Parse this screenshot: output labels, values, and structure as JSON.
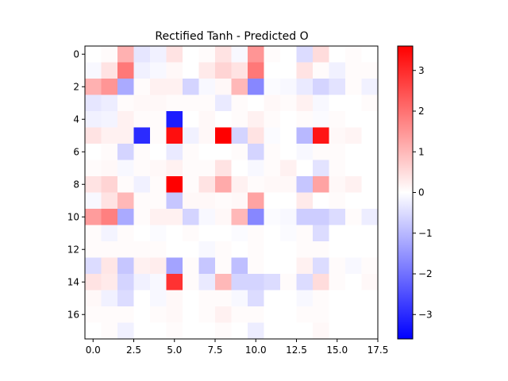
{
  "chart_data": {
    "type": "heatmap",
    "title": "Rectified Tanh - Predicted O",
    "xlabel": "",
    "ylabel": "",
    "rows": 18,
    "cols": 18,
    "x_range": [
      -0.5,
      17.5
    ],
    "y_range": [
      17.5,
      -0.5
    ],
    "x_ticks": [
      0.0,
      2.5,
      5.0,
      7.5,
      10.0,
      12.5,
      15.0,
      17.5
    ],
    "x_tick_labels": [
      "0.0",
      "2.5",
      "5.0",
      "7.5",
      "10.0",
      "12.5",
      "15.0",
      "17.5"
    ],
    "y_ticks": [
      0,
      2,
      4,
      6,
      8,
      10,
      12,
      14,
      16
    ],
    "y_tick_labels": [
      "0",
      "2",
      "4",
      "6",
      "8",
      "10",
      "12",
      "14",
      "16"
    ],
    "colormap": "bwr",
    "color_range": [
      -3.6,
      3.6
    ],
    "colorbar_ticks": [
      3,
      2,
      1,
      0,
      -1,
      -2,
      -3
    ],
    "colorbar_tick_labels": [
      "3",
      "2",
      "1",
      "0",
      "−1",
      "−2",
      "−3"
    ],
    "grid": false,
    "values": [
      [
        0.0,
        0.05,
        1.1,
        -0.35,
        -0.2,
        0.4,
        0.0,
        0.05,
        0.4,
        -0.1,
        1.5,
        0.05,
        0.0,
        -0.5,
        0.5,
        0.0,
        0.05,
        0.0
      ],
      [
        -0.1,
        0.4,
        1.9,
        -0.2,
        -0.1,
        0.1,
        0.0,
        0.3,
        0.6,
        0.4,
        1.9,
        0.0,
        0.0,
        0.4,
        0.05,
        -0.2,
        0.05,
        0.05
      ],
      [
        1.1,
        1.5,
        -1.2,
        0.05,
        0.2,
        0.2,
        -0.6,
        -0.1,
        0.1,
        1.0,
        -1.7,
        -0.05,
        -0.1,
        -0.3,
        -0.6,
        -0.4,
        0.05,
        -0.2
      ],
      [
        -0.35,
        -0.25,
        0.05,
        0.1,
        0.1,
        0.05,
        0.05,
        0.05,
        -0.3,
        0.05,
        0.0,
        0.1,
        0.05,
        0.2,
        -0.1,
        0.0,
        0.0,
        0.05
      ],
      [
        -0.2,
        -0.15,
        0.2,
        0.05,
        0.05,
        -3.2,
        0.0,
        0.1,
        0.0,
        0.05,
        0.2,
        0.05,
        0.0,
        0.05,
        -0.05,
        0.05,
        0.0,
        0.0
      ],
      [
        0.4,
        0.2,
        0.2,
        -3.0,
        0.05,
        3.4,
        -0.2,
        0.1,
        3.6,
        -0.6,
        0.4,
        -0.05,
        0.0,
        -1.0,
        3.3,
        0.1,
        0.15,
        0.0
      ],
      [
        0.0,
        0.05,
        -0.6,
        0.05,
        0.0,
        -0.3,
        0.05,
        0.0,
        0.0,
        0.05,
        -0.6,
        0.05,
        0.0,
        -0.1,
        0.05,
        0.05,
        0.0,
        0.0
      ],
      [
        0.05,
        0.1,
        -0.1,
        0.05,
        0.1,
        0.2,
        0.05,
        0.05,
        0.4,
        0.0,
        -0.1,
        0.05,
        0.2,
        0.0,
        -0.4,
        0.05,
        0.0,
        0.0
      ],
      [
        0.4,
        0.6,
        0.05,
        -0.2,
        0.05,
        3.6,
        0.05,
        0.4,
        1.2,
        0.2,
        0.05,
        0.1,
        0.1,
        -0.8,
        1.3,
        0.1,
        0.2,
        0.0
      ],
      [
        -0.1,
        0.4,
        1.0,
        0.05,
        0.05,
        -0.8,
        0.1,
        0.1,
        0.05,
        0.1,
        1.3,
        0.0,
        0.0,
        0.3,
        0.0,
        0.05,
        0.0,
        0.0
      ],
      [
        1.4,
        1.8,
        -1.2,
        0.05,
        0.2,
        0.2,
        -0.6,
        -0.1,
        0.1,
        1.0,
        -1.7,
        -0.05,
        -0.1,
        -0.7,
        -0.7,
        -0.5,
        0.05,
        -0.25
      ],
      [
        0.05,
        -0.15,
        0.05,
        0.0,
        -0.05,
        0.0,
        0.05,
        0.0,
        0.0,
        -0.05,
        0.05,
        0.0,
        -0.05,
        0.05,
        -0.5,
        0.0,
        0.0,
        0.0
      ],
      [
        0.05,
        0.05,
        0.05,
        0.05,
        0.05,
        0.0,
        0.0,
        -0.1,
        0.05,
        0.0,
        0.05,
        0.0,
        0.0,
        0.05,
        0.05,
        0.0,
        0.0,
        0.0
      ],
      [
        -0.5,
        0.35,
        -0.8,
        0.2,
        0.25,
        -1.3,
        0.05,
        -0.8,
        0.05,
        -0.9,
        0.05,
        0.0,
        0.0,
        0.2,
        -0.5,
        0.05,
        -0.1,
        0.05
      ],
      [
        0.4,
        0.3,
        -0.6,
        -0.2,
        -0.1,
        2.9,
        0.05,
        -0.3,
        1.0,
        -0.6,
        -0.6,
        -0.5,
        0.05,
        -0.5,
        0.5,
        0.05,
        0.0,
        0.1
      ],
      [
        0.1,
        -0.2,
        -0.5,
        0.0,
        -0.1,
        0.1,
        0.0,
        0.05,
        0.05,
        -0.1,
        -0.5,
        0.0,
        0.0,
        -0.1,
        0.05,
        0.0,
        0.0,
        0.0
      ],
      [
        0.05,
        0.05,
        0.05,
        0.0,
        0.05,
        0.1,
        0.0,
        0.05,
        0.2,
        0.05,
        0.05,
        0.0,
        0.0,
        0.05,
        0.05,
        0.0,
        0.0,
        0.0
      ],
      [
        0.0,
        0.05,
        -0.2,
        0.0,
        0.0,
        0.05,
        0.0,
        0.0,
        0.05,
        0.0,
        -0.25,
        0.0,
        0.0,
        0.0,
        0.1,
        0.0,
        0.0,
        0.0
      ]
    ]
  }
}
